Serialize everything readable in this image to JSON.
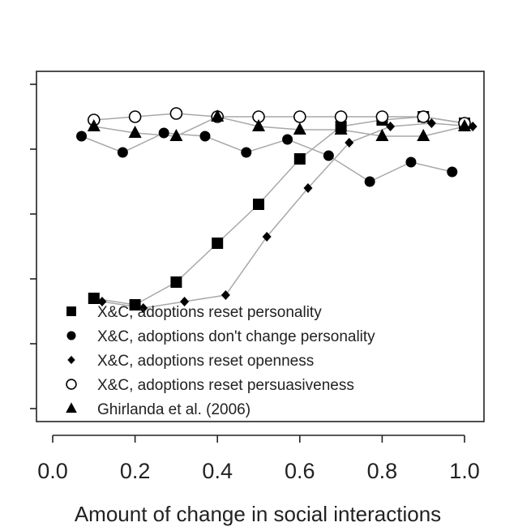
{
  "chart_data": {
    "type": "line",
    "title": "",
    "xlabel": "Amount of change in social interactions",
    "ylabel": "",
    "xlim": [
      -0.05,
      1.03
    ],
    "ylim": [
      0.0,
      1.0
    ],
    "grid": false,
    "x_ticks": [
      "0.0",
      "0.2",
      "0.4",
      "0.6",
      "0.8",
      "1.0"
    ],
    "x_tick_values": [
      0.0,
      0.2,
      0.4,
      0.6,
      0.8,
      1.0
    ],
    "y_tick_values": [
      0.0,
      0.2,
      0.4,
      0.6,
      0.8,
      1.0
    ],
    "y_tick_labels_visible": false,
    "legend_position": "bottom-left",
    "series": [
      {
        "name": "X&C, adoptions reset personality",
        "marker": "square",
        "x": [
          0.1,
          0.2,
          0.3,
          0.4,
          0.5,
          0.6,
          0.7,
          0.8,
          0.9,
          1.0
        ],
        "y": [
          0.34,
          0.32,
          0.39,
          0.51,
          0.63,
          0.77,
          0.87,
          0.89,
          0.9,
          0.88
        ]
      },
      {
        "name": "X&C, adoptions don't change personality",
        "marker": "circle",
        "x": [
          0.07,
          0.17,
          0.27,
          0.37,
          0.47,
          0.57,
          0.67,
          0.77,
          0.87,
          0.97
        ],
        "y": [
          0.84,
          0.79,
          0.85,
          0.84,
          0.79,
          0.83,
          0.78,
          0.7,
          0.76,
          0.73
        ]
      },
      {
        "name": "X&C, adoptions reset openness",
        "marker": "diamond",
        "x": [
          0.12,
          0.22,
          0.32,
          0.42,
          0.52,
          0.62,
          0.72,
          0.82,
          0.92,
          1.02
        ],
        "y": [
          0.33,
          0.31,
          0.33,
          0.35,
          0.53,
          0.68,
          0.82,
          0.87,
          0.88,
          0.87
        ]
      },
      {
        "name": "X&C, adoptions reset persuasiveness",
        "marker": "open-circle",
        "x": [
          0.1,
          0.2,
          0.3,
          0.4,
          0.5,
          0.6,
          0.7,
          0.8,
          0.9,
          1.0
        ],
        "y": [
          0.89,
          0.9,
          0.91,
          0.9,
          0.9,
          0.9,
          0.9,
          0.9,
          0.9,
          0.88
        ]
      },
      {
        "name": "Ghirlanda et al. (2006)",
        "marker": "triangle",
        "x": [
          0.1,
          0.2,
          0.3,
          0.4,
          0.5,
          0.6,
          0.7,
          0.8,
          0.9,
          1.0
        ],
        "y": [
          0.87,
          0.85,
          0.84,
          0.9,
          0.87,
          0.86,
          0.86,
          0.84,
          0.84,
          0.87
        ]
      }
    ]
  }
}
